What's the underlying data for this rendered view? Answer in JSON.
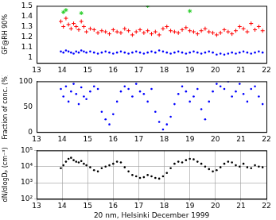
{
  "chart_data": [
    {
      "type": "scatter",
      "y_label": "GF@RH 90%",
      "x": [
        13.95,
        14.05,
        14.15,
        14.25,
        14.35,
        14.45,
        14.55,
        14.65,
        14.75,
        14.85,
        14.95,
        15.1,
        15.25,
        15.4,
        15.55,
        15.7,
        15.85,
        16.0,
        16.15,
        16.3,
        16.45,
        16.6,
        16.75,
        16.9,
        17.05,
        17.2,
        17.35,
        17.5,
        17.65,
        17.8,
        17.95,
        18.1,
        18.25,
        18.4,
        18.55,
        18.7,
        18.85,
        19.0,
        19.15,
        19.3,
        19.45,
        19.6,
        19.75,
        19.9,
        20.05,
        20.2,
        20.35,
        20.5,
        20.65,
        20.8,
        20.95,
        21.1,
        21.25,
        21.4,
        21.55,
        21.7,
        21.85
      ],
      "series": [
        {
          "color": "red",
          "marker": "plus",
          "values": [
            1.35,
            1.3,
            1.38,
            1.32,
            1.28,
            1.33,
            1.3,
            1.27,
            1.35,
            1.3,
            1.25,
            1.28,
            1.27,
            1.24,
            1.26,
            1.25,
            1.23,
            1.27,
            1.25,
            1.24,
            1.28,
            1.26,
            1.22,
            1.25,
            1.27,
            1.24,
            1.26,
            1.23,
            1.25,
            1.22,
            1.28,
            1.3,
            1.26,
            1.25,
            1.24,
            1.27,
            1.29,
            1.26,
            1.25,
            1.23,
            1.26,
            1.28,
            1.25,
            1.24,
            1.22,
            1.24,
            1.27,
            1.25,
            1.23,
            1.26,
            1.3,
            1.28,
            1.25,
            1.33,
            1.27,
            1.3,
            1.26
          ]
        },
        {
          "color": "blue",
          "marker": "dot",
          "values": [
            1.06,
            1.05,
            1.07,
            1.06,
            1.05,
            1.04,
            1.06,
            1.05,
            1.07,
            1.06,
            1.05,
            1.06,
            1.05,
            1.04,
            1.05,
            1.06,
            1.05,
            1.04,
            1.05,
            1.06,
            1.05,
            1.04,
            1.05,
            1.06,
            1.05,
            1.04,
            1.05,
            1.06,
            1.05,
            1.07,
            1.06,
            1.05,
            1.04,
            1.05,
            1.06,
            1.05,
            1.04,
            1.05,
            1.06,
            1.05,
            1.04,
            1.05,
            1.06,
            1.05,
            1.03,
            1.04,
            1.03,
            1.04,
            1.05,
            1.04,
            1.05,
            1.06,
            1.05,
            1.04,
            1.05,
            1.06,
            1.05
          ]
        },
        {
          "color": "#22cc22",
          "marker": "star",
          "values": [
            null,
            1.44,
            1.46,
            null,
            null,
            null,
            null,
            null,
            1.43,
            null,
            null,
            null,
            null,
            null,
            null,
            null,
            null,
            null,
            null,
            null,
            null,
            null,
            null,
            null,
            null,
            null,
            1.5,
            null,
            null,
            null,
            null,
            null,
            null,
            null,
            null,
            null,
            null,
            1.45,
            null,
            null,
            null,
            null,
            null,
            null,
            null,
            null,
            null,
            null,
            null,
            null,
            null,
            null,
            null,
            null,
            null,
            null,
            null
          ]
        }
      ],
      "xlim": [
        13,
        22
      ],
      "xticks": [
        13,
        14,
        15,
        16,
        17,
        18,
        19,
        20,
        21,
        22
      ],
      "ylim": [
        0.95,
        1.5
      ],
      "yticks": [
        1,
        1.1,
        1.2,
        1.3,
        1.4,
        1.5
      ],
      "grid": false
    },
    {
      "type": "scatter",
      "y_label": "Fraction of conc. (%)",
      "color": "blue",
      "marker": "dot",
      "x": [
        13.95,
        14.05,
        14.15,
        14.25,
        14.35,
        14.45,
        14.55,
        14.65,
        14.75,
        14.85,
        14.95,
        15.1,
        15.25,
        15.4,
        15.55,
        15.7,
        15.85,
        16.0,
        16.15,
        16.3,
        16.45,
        16.6,
        16.75,
        16.9,
        17.05,
        17.2,
        17.35,
        17.5,
        17.65,
        17.8,
        17.95,
        18.1,
        18.25,
        18.4,
        18.55,
        18.7,
        18.85,
        19.0,
        19.15,
        19.3,
        19.45,
        19.6,
        19.75,
        19.9,
        20.05,
        20.2,
        20.35,
        20.5,
        20.65,
        20.8,
        20.95,
        21.1,
        21.25,
        21.4,
        21.55,
        21.7,
        21.85
      ],
      "values": [
        85,
        70,
        90,
        60,
        80,
        95,
        75,
        55,
        88,
        70,
        65,
        80,
        90,
        85,
        40,
        25,
        15,
        35,
        60,
        80,
        90,
        85,
        70,
        95,
        80,
        75,
        60,
        85,
        40,
        20,
        5,
        15,
        30,
        55,
        75,
        90,
        80,
        60,
        70,
        85,
        45,
        25,
        60,
        80,
        95,
        90,
        85,
        100,
        70,
        80,
        95,
        75,
        60,
        85,
        90,
        70,
        55
      ],
      "xlim": [
        13,
        22
      ],
      "xticks": [
        13,
        14,
        15,
        16,
        17,
        18,
        19,
        20,
        21,
        22
      ],
      "ylim": [
        0,
        100
      ],
      "yticks": [
        0,
        50,
        100
      ],
      "grid": false
    },
    {
      "type": "scatter",
      "y_label": "dN/dlogDₚ (cm⁻³)",
      "x_label": "20 nm, Helsinki December 1999",
      "color": "black",
      "marker": "dot",
      "log": "y",
      "x": [
        13.95,
        14.05,
        14.15,
        14.25,
        14.35,
        14.45,
        14.55,
        14.65,
        14.75,
        14.85,
        14.95,
        15.1,
        15.25,
        15.4,
        15.55,
        15.7,
        15.85,
        16.0,
        16.15,
        16.3,
        16.45,
        16.6,
        16.75,
        16.9,
        17.05,
        17.2,
        17.35,
        17.5,
        17.65,
        17.8,
        17.95,
        18.1,
        18.25,
        18.4,
        18.55,
        18.7,
        18.85,
        19.0,
        19.15,
        19.3,
        19.45,
        19.6,
        19.75,
        19.9,
        20.05,
        20.2,
        20.35,
        20.5,
        20.65,
        20.8,
        20.95,
        21.1,
        21.25,
        21.4,
        21.55,
        21.7,
        21.85
      ],
      "values": [
        8000,
        12000,
        20000,
        30000,
        35000,
        25000,
        20000,
        18000,
        22000,
        15000,
        12000,
        9000,
        6000,
        5000,
        8000,
        10000,
        12000,
        15000,
        20000,
        18000,
        9000,
        5000,
        3000,
        2500,
        2000,
        2200,
        3000,
        2500,
        2000,
        1800,
        2500,
        4000,
        8000,
        15000,
        20000,
        18000,
        25000,
        30000,
        28000,
        20000,
        15000,
        10000,
        7000,
        5000,
        6000,
        9000,
        15000,
        20000,
        18000,
        12000,
        10000,
        15000,
        9000,
        8000,
        12000,
        10000,
        9000
      ],
      "xlim": [
        13,
        22
      ],
      "xticks": [
        13,
        14,
        15,
        16,
        17,
        18,
        19,
        20,
        21,
        22
      ],
      "ylim": [
        100,
        100000
      ],
      "yticks": [
        {
          "value": 100,
          "label": "10²"
        },
        {
          "value": 1000,
          "label": "10³"
        },
        {
          "value": 10000,
          "label": "10⁴"
        },
        {
          "value": 100000,
          "label": "10⁵"
        }
      ],
      "grid": true
    }
  ]
}
